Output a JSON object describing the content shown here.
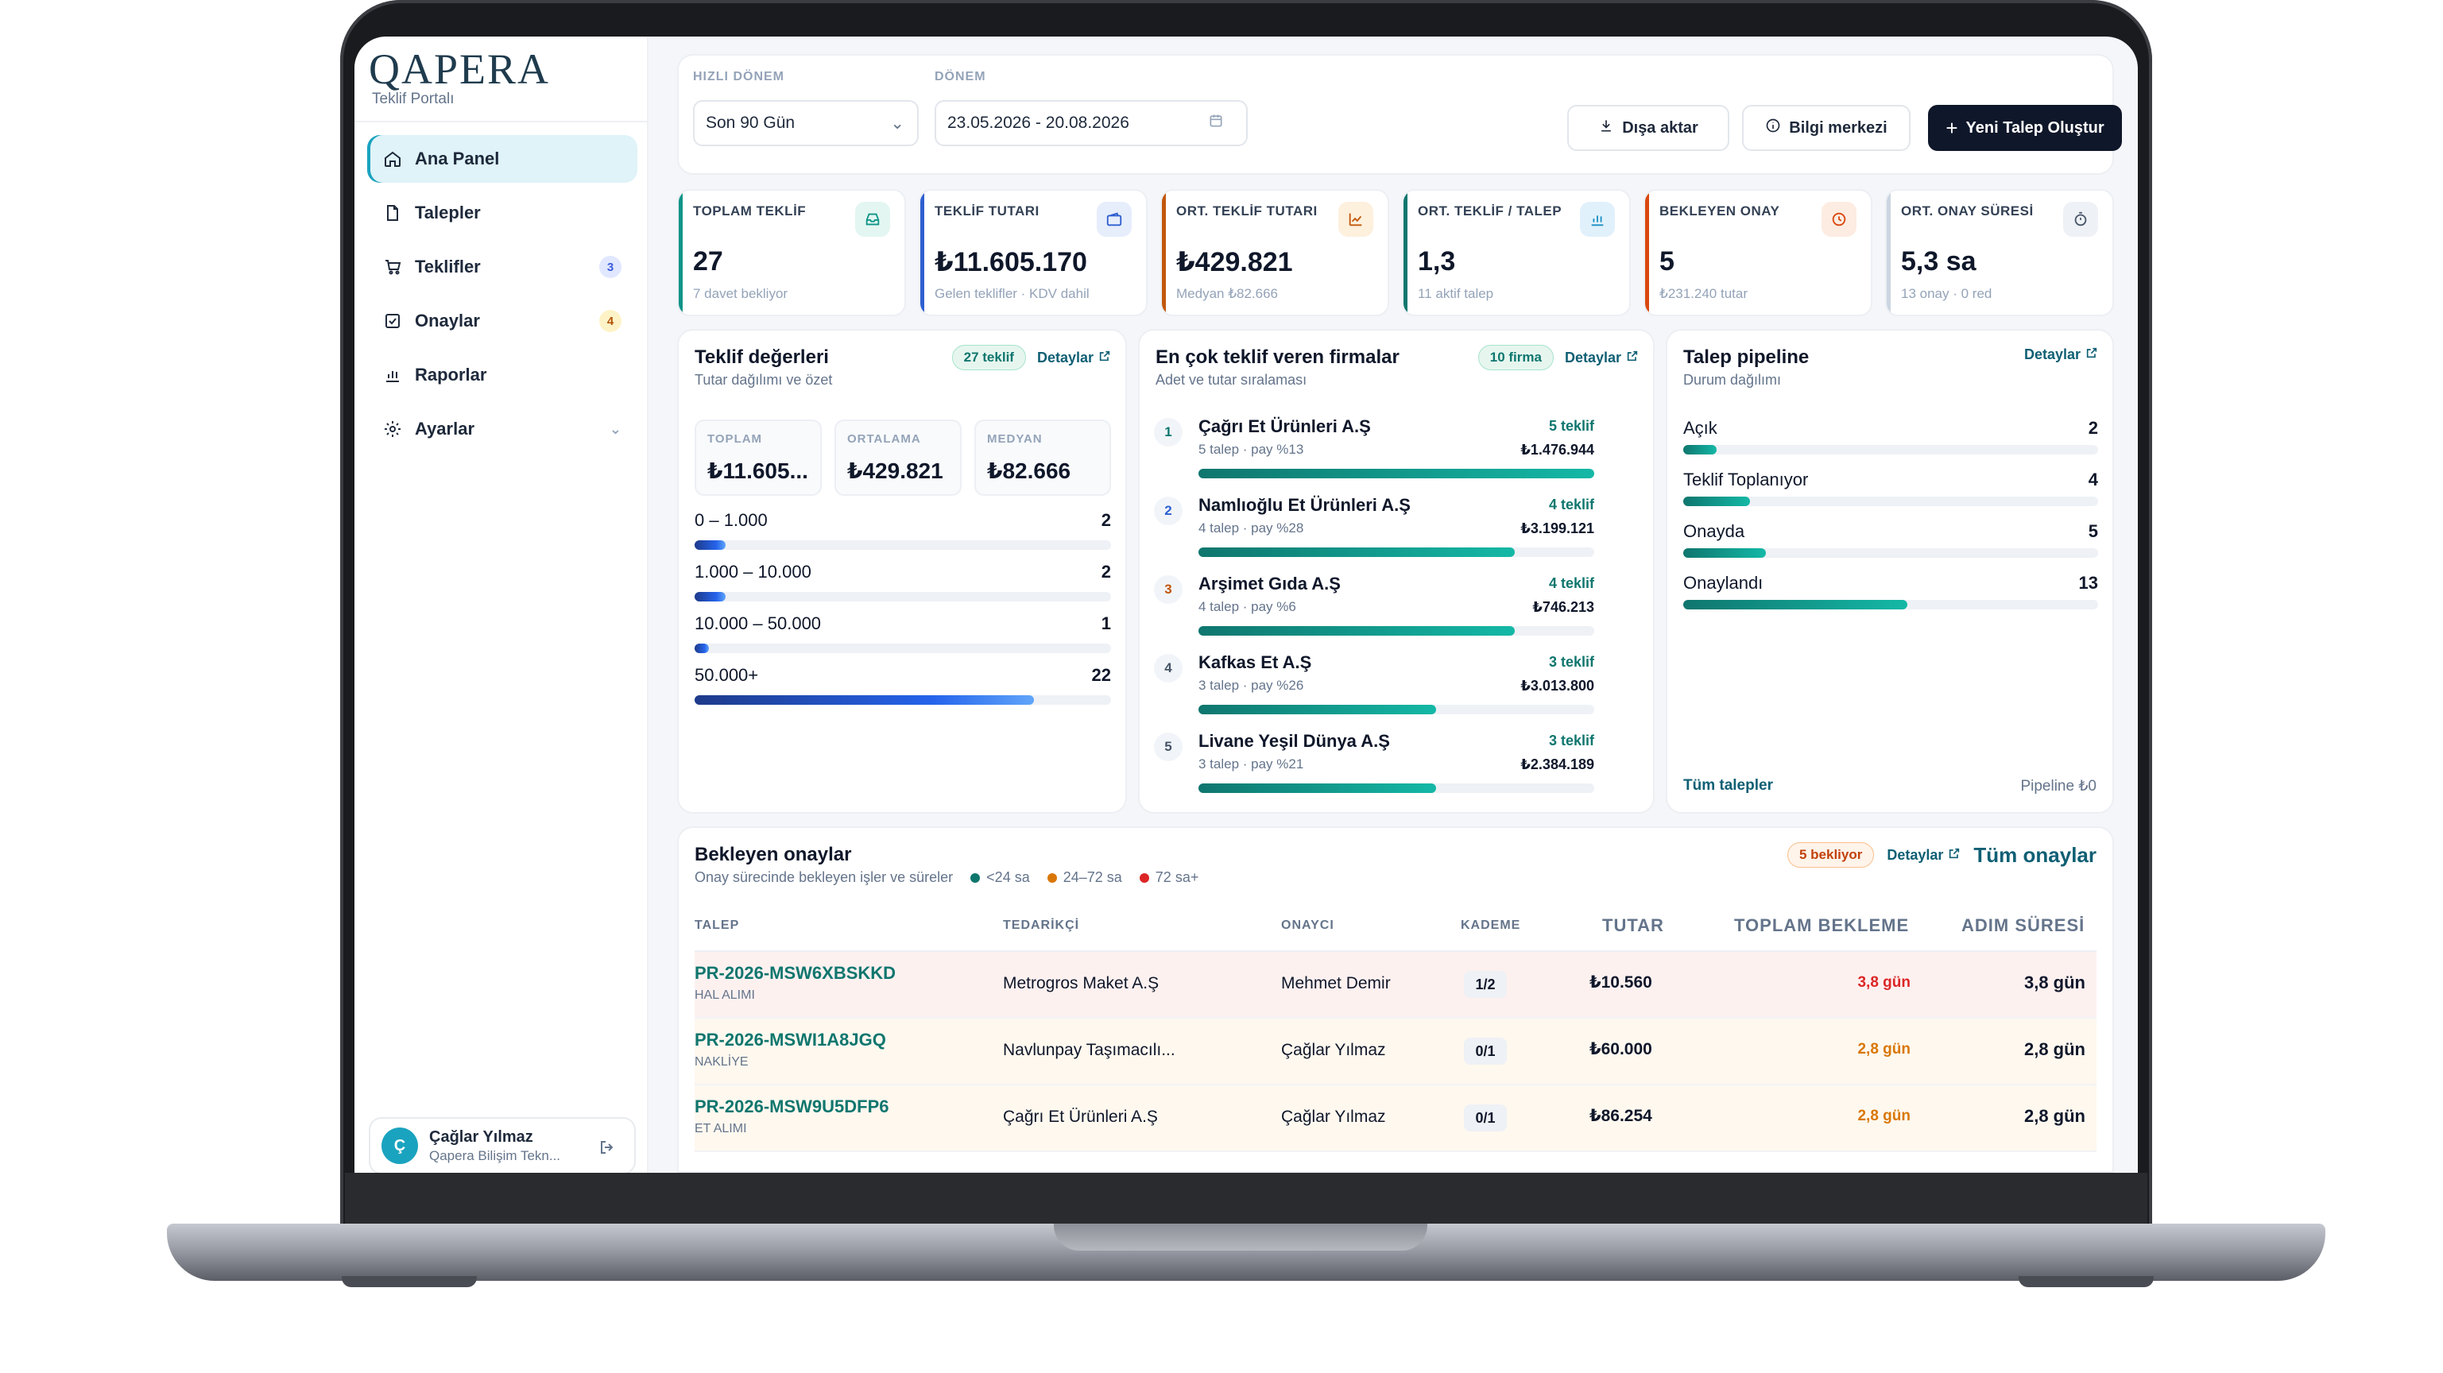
{
  "brand": {
    "logo": "QAPERA",
    "subtitle": "Teklif Portalı"
  },
  "sidebar": {
    "items": [
      {
        "label": "Ana Panel",
        "icon": "home-icon",
        "active": true
      },
      {
        "label": "Talepler",
        "icon": "document-icon"
      },
      {
        "label": "Teklifler",
        "icon": "cart-icon",
        "badge": "3"
      },
      {
        "label": "Onaylar",
        "icon": "checkbox-icon",
        "badge": "4"
      },
      {
        "label": "Raporlar",
        "icon": "bar-chart-icon"
      },
      {
        "label": "Ayarlar",
        "icon": "gear-icon"
      }
    ],
    "user": {
      "initial": "Ç",
      "name": "Çağlar Yılmaz",
      "org": "Qapera Bilişim Tekn..."
    }
  },
  "filters": {
    "quick_label": "HIZLI DÖNEM",
    "quick_value": "Son 90 Gün",
    "period_label": "DÖNEM",
    "period_value": "23.05.2026 - 20.08.2026"
  },
  "toolbar": {
    "export": "Dışa aktar",
    "help": "Bilgi merkezi",
    "new": "Yeni Talep Oluştur"
  },
  "kpis": [
    {
      "title": "TOPLAM TEKLİF",
      "value": "27",
      "sub": "7 davet bekliyor",
      "color": "#0f9488"
    },
    {
      "title": "TEKLİF TUTARI",
      "value": "₺11.605.170",
      "sub": "Gelen teklifler · KDV dahil",
      "color": "#2f5fd0"
    },
    {
      "title": "ORT. TEKLİF TUTARI",
      "value": "₺429.821",
      "sub": "Medyan ₺82.666",
      "color": "#c2570c"
    },
    {
      "title": "ORT. TEKLİF / TALEP",
      "value": "1,3",
      "sub": "11 aktif talep",
      "color": "#0f766e"
    },
    {
      "title": "BEKLEYEN ONAY",
      "value": "5",
      "sub": "₺231.240 tutar",
      "color": "#d9480f"
    },
    {
      "title": "ORT. ONAY SÜRESİ",
      "value": "5,3 sa",
      "sub": "13 onay · 0 red",
      "color": "#64748b"
    }
  ],
  "offers": {
    "title": "Teklif değerleri",
    "subtitle": "Tutar dağılımı ve özet",
    "pill": "27 teklif",
    "link": "Detaylar",
    "stats": [
      {
        "label": "TOPLAM",
        "value": "₺11.605..."
      },
      {
        "label": "ORTALAMA",
        "value": "₺429.821"
      },
      {
        "label": "MEDYAN",
        "value": "₺82.666"
      }
    ],
    "buckets": [
      {
        "label": "0 – 1.000",
        "count": "2",
        "fraction": 0.075
      },
      {
        "label": "1.000 – 10.000",
        "count": "2",
        "fraction": 0.075
      },
      {
        "label": "10.000 – 50.000",
        "count": "1",
        "fraction": 0.035
      },
      {
        "label": "50.000+",
        "count": "22",
        "fraction": 0.815
      }
    ]
  },
  "firms": {
    "title": "En çok teklif veren firmalar",
    "subtitle": "Adet ve tutar sıralaması",
    "pill": "10 firma",
    "link": "Detaylar",
    "items": [
      {
        "rank": "1",
        "name": "Çağrı Et Ürünleri A.Ş",
        "meta": "5 talep · pay %13",
        "count": "5 teklif",
        "amount": "₺1.476.944",
        "fraction": 1.0
      },
      {
        "rank": "2",
        "name": "Namlıoğlu Et Ürünleri A.Ş",
        "meta": "4 talep · pay %28",
        "count": "4 teklif",
        "amount": "₺3.199.121",
        "fraction": 0.8
      },
      {
        "rank": "3",
        "name": "Arşimet Gıda A.Ş",
        "meta": "4 talep · pay %6",
        "count": "4 teklif",
        "amount": "₺746.213",
        "fraction": 0.8
      },
      {
        "rank": "4",
        "name": "Kafkas Et A.Ş",
        "meta": "3 talep · pay %26",
        "count": "3 teklif",
        "amount": "₺3.013.800",
        "fraction": 0.6
      },
      {
        "rank": "5",
        "name": "Livane Yeşil Dünya A.Ş",
        "meta": "3 talep · pay %21",
        "count": "3 teklif",
        "amount": "₺2.384.189",
        "fraction": 0.6
      }
    ]
  },
  "pipeline": {
    "title": "Talep pipeline",
    "subtitle": "Durum dağılımı",
    "link": "Detaylar",
    "items": [
      {
        "label": "Açık",
        "count": "2",
        "fraction": 0.08
      },
      {
        "label": "Teklif Toplanıyor",
        "count": "4",
        "fraction": 0.16
      },
      {
        "label": "Onayda",
        "count": "5",
        "fraction": 0.2
      },
      {
        "label": "Onaylandı",
        "count": "13",
        "fraction": 0.54
      }
    ],
    "footer_link": "Tüm talepler",
    "footer_value": "Pipeline ₺0"
  },
  "approvals": {
    "title": "Bekleyen onaylar",
    "subtitle": "Onay sürecinde bekleyen işler ve süreler",
    "legend": [
      {
        "label": "<24 sa",
        "color": "#0f766e"
      },
      {
        "label": "24–72 sa",
        "color": "#d97706"
      },
      {
        "label": "72 sa+",
        "color": "#dc2626"
      }
    ],
    "pill": "5 bekliyor",
    "link": "Detaylar",
    "all_link": "Tüm onaylar",
    "columns": [
      "TALEP",
      "TEDARİKÇİ",
      "ONAYCI",
      "KADEME",
      "TUTAR",
      "TOPLAM BEKLEME",
      "ADIM SÜRESİ"
    ],
    "rows": [
      {
        "code": "PR-2026-MSW6XBSKKD",
        "type": "HAL ALIMI",
        "supplier": "Metrogros Maket A.Ş",
        "approver": "Mehmet Demir",
        "level": "1/2",
        "amount": "₺10.560",
        "total": "3,8 gün",
        "step": "3,8 gün",
        "total_color": "#dc2626",
        "bg": "#fdf1f0"
      },
      {
        "code": "PR-2026-MSWI1A8JGQ",
        "type": "NAKLİYE",
        "supplier": "Navlunpay Taşımacılı...",
        "approver": "Çağlar Yılmaz",
        "level": "0/1",
        "amount": "₺60.000",
        "total": "2,8 gün",
        "step": "2,8 gün",
        "total_color": "#d97706",
        "bg": "#fef8ef"
      },
      {
        "code": "PR-2026-MSW9U5DFP6",
        "type": "ET ALIMI",
        "supplier": "Çağrı Et Ürünleri A.Ş",
        "approver": "Çağlar Yılmaz",
        "level": "0/1",
        "amount": "₺86.254",
        "total": "2,8 gün",
        "step": "2,8 gün",
        "total_color": "#d97706",
        "bg": "#fef8ef"
      }
    ]
  }
}
